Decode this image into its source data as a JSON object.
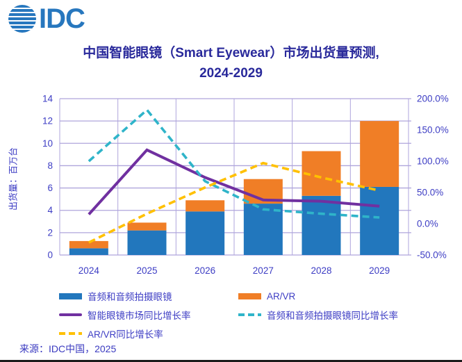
{
  "logo": {
    "text": "IDC"
  },
  "title": {
    "line1": "中国智能眼镜（Smart Eyewear）市场出货量预测,",
    "line2": "2024-2029"
  },
  "source": "来源：IDC中国，2025",
  "colors": {
    "logo_blue": "#2777BE",
    "title_text": "#29299B",
    "axis_text": "#3D3DC4",
    "gridline": "#AFA5DC",
    "bar_blue": "#2277BD",
    "bar_orange": "#F07E26",
    "line_purple": "#7030A0",
    "line_teal": "#2FB4C9",
    "line_yellow": "#FFC000"
  },
  "chart_data": {
    "type": "bar",
    "subtype": "stacked-bars-with-lines",
    "categories": [
      "2024",
      "2025",
      "2026",
      "2027",
      "2028",
      "2029"
    ],
    "bar_series": [
      {
        "name": "音频和音频拍摄眼镜",
        "color": "#2277BD",
        "values": [
          0.6,
          2.2,
          3.9,
          4.6,
          5.3,
          6.1
        ]
      },
      {
        "name": "AR/VR",
        "color": "#F07E26",
        "values": [
          0.65,
          0.7,
          1.0,
          2.2,
          4.0,
          5.9
        ]
      }
    ],
    "line_series": [
      {
        "name": "智能眼镜市场同比增长率",
        "color": "#7030A0",
        "dashed": false,
        "values": [
          15,
          118,
          74,
          38,
          36,
          28
        ]
      },
      {
        "name": "音频和音频拍摄眼镜同比增长率",
        "color": "#2FB4C9",
        "dashed": true,
        "values": [
          100,
          182,
          68,
          23,
          16,
          10
        ]
      },
      {
        "name": "AR/VR同比增长率",
        "color": "#FFC000",
        "dashed": true,
        "values": [
          -30,
          16,
          58,
          97,
          74,
          53
        ]
      }
    ],
    "y_left": {
      "title": "出货量：百万台",
      "ticks": [
        0,
        2,
        4,
        6,
        8,
        10,
        12,
        14
      ],
      "range": [
        0,
        14
      ]
    },
    "y_right": {
      "tick_labels": [
        "200.0%",
        "150.0%",
        "100.0%",
        "50.0%",
        "0.0%",
        "-50.0%"
      ],
      "tick_values": [
        200,
        150,
        100,
        50,
        0,
        -50
      ],
      "range": [
        -50,
        200
      ]
    },
    "grid": true,
    "legend_position": "bottom"
  },
  "legend": {
    "items": [
      {
        "label": "音频和音频拍摄眼镜",
        "marker": "bar",
        "color": "#2277BD"
      },
      {
        "label": "AR/VR",
        "marker": "bar",
        "color": "#F07E26"
      },
      {
        "label": "智能眼镜市场同比增长率",
        "marker": "solid",
        "color": "#7030A0"
      },
      {
        "label": "音频和音频拍摄眼镜同比增长率",
        "marker": "dashed",
        "color": "#2FB4C9"
      },
      {
        "label": "AR/VR同比增长率",
        "marker": "dashed",
        "color": "#FFC000"
      }
    ]
  }
}
